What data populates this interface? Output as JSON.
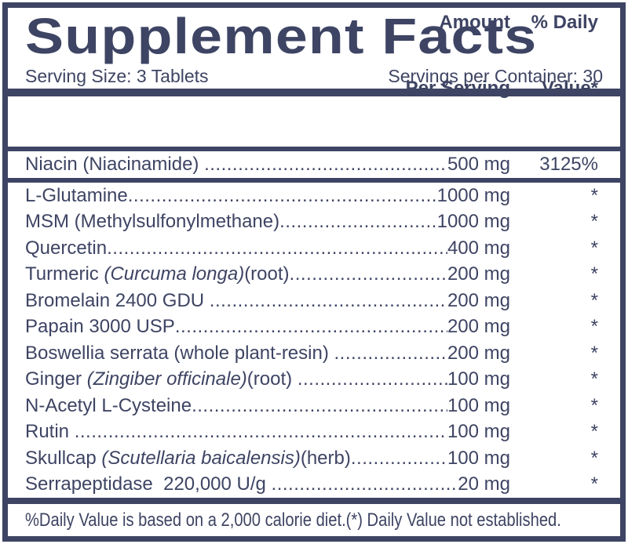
{
  "colors": {
    "navy": "#3e4463",
    "background": "#ffffff"
  },
  "label": {
    "title": "Supplement Facts",
    "serving_size": "Serving Size: 3 Tablets",
    "servings_per_container": "Servings per Container: 30",
    "header": {
      "amount_line1": "Amount",
      "amount_line2": "Per Serving",
      "dv_line1": "% Daily",
      "dv_line2": "Value*"
    },
    "featured_rows": [
      {
        "pre": "Niacin (Niacinamide) ",
        "italic": "",
        "post": "",
        "amount": "500 mg",
        "dv": "3125%"
      }
    ],
    "rows": [
      {
        "pre": "L-Glutamine",
        "italic": "",
        "post": "",
        "amount": "1000 mg",
        "dv": "*"
      },
      {
        "pre": "MSM (Methylsulfonylmethane)",
        "italic": "",
        "post": "",
        "amount": "1000 mg",
        "dv": "*"
      },
      {
        "pre": "Quercetin",
        "italic": "",
        "post": "",
        "amount": "400 mg",
        "dv": "*"
      },
      {
        "pre": "Turmeric ",
        "italic": "(Curcuma longa)",
        "post": "(root)",
        "amount": "200 mg",
        "dv": "*"
      },
      {
        "pre": "Bromelain 2400 GDU ",
        "italic": "",
        "post": "",
        "amount": "200 mg",
        "dv": "*"
      },
      {
        "pre": "Papain 3000 USP",
        "italic": "",
        "post": "",
        "amount": "200 mg",
        "dv": "*"
      },
      {
        "pre": "Boswellia serrata (whole plant-resin) ",
        "italic": "",
        "post": "",
        "amount": "200 mg",
        "dv": "*"
      },
      {
        "pre": "Ginger ",
        "italic": "(Zingiber officinale)",
        "post": "(root) ",
        "amount": "100 mg",
        "dv": "*"
      },
      {
        "pre": "N-Acetyl L-Cysteine",
        "italic": "",
        "post": "",
        "amount": "100 mg",
        "dv": "*"
      },
      {
        "pre": "Rutin ",
        "italic": "",
        "post": "",
        "amount": "100 mg",
        "dv": "*"
      },
      {
        "pre": "Skullcap ",
        "italic": "(Scutellaria baicalensis)",
        "post": "(herb)",
        "amount": "100 mg",
        "dv": "*"
      },
      {
        "pre": "Serrapeptidase  220,000 U/g ",
        "italic": "",
        "post": "",
        "amount": "20 mg",
        "dv": "*"
      }
    ],
    "footnote": "%Daily Value is based on a 2,000 calorie diet.(*) Daily Value not established."
  }
}
